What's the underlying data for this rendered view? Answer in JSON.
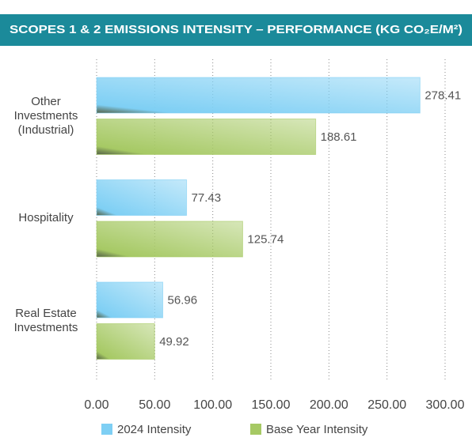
{
  "chart_data": {
    "type": "bar",
    "orientation": "horizontal",
    "title": "SCOPES 1 & 2 EMISSIONS INTENSITY – PERFORMANCE (KG CO₂E/M²)",
    "categories": [
      "Other Investments (Industrial)",
      "Hospitality",
      "Real Estate Investments"
    ],
    "series": [
      {
        "name": "2024 Intensity",
        "color": "#7ecff4",
        "values": [
          278.41,
          77.43,
          56.96
        ]
      },
      {
        "name": "Base Year Intensity",
        "color": "#a6c964",
        "values": [
          188.61,
          125.74,
          49.92
        ]
      }
    ],
    "xlim": [
      0,
      300
    ],
    "xticks": [
      {
        "value": 0,
        "label": "0.00"
      },
      {
        "value": 50,
        "label": "50.00"
      },
      {
        "value": 100,
        "label": "100.00"
      },
      {
        "value": 150,
        "label": "150.00"
      },
      {
        "value": 200,
        "label": "200.00"
      },
      {
        "value": 250,
        "label": "250.00"
      },
      {
        "value": 300,
        "label": "300.00"
      }
    ],
    "grid": true,
    "legend": "bottom"
  }
}
